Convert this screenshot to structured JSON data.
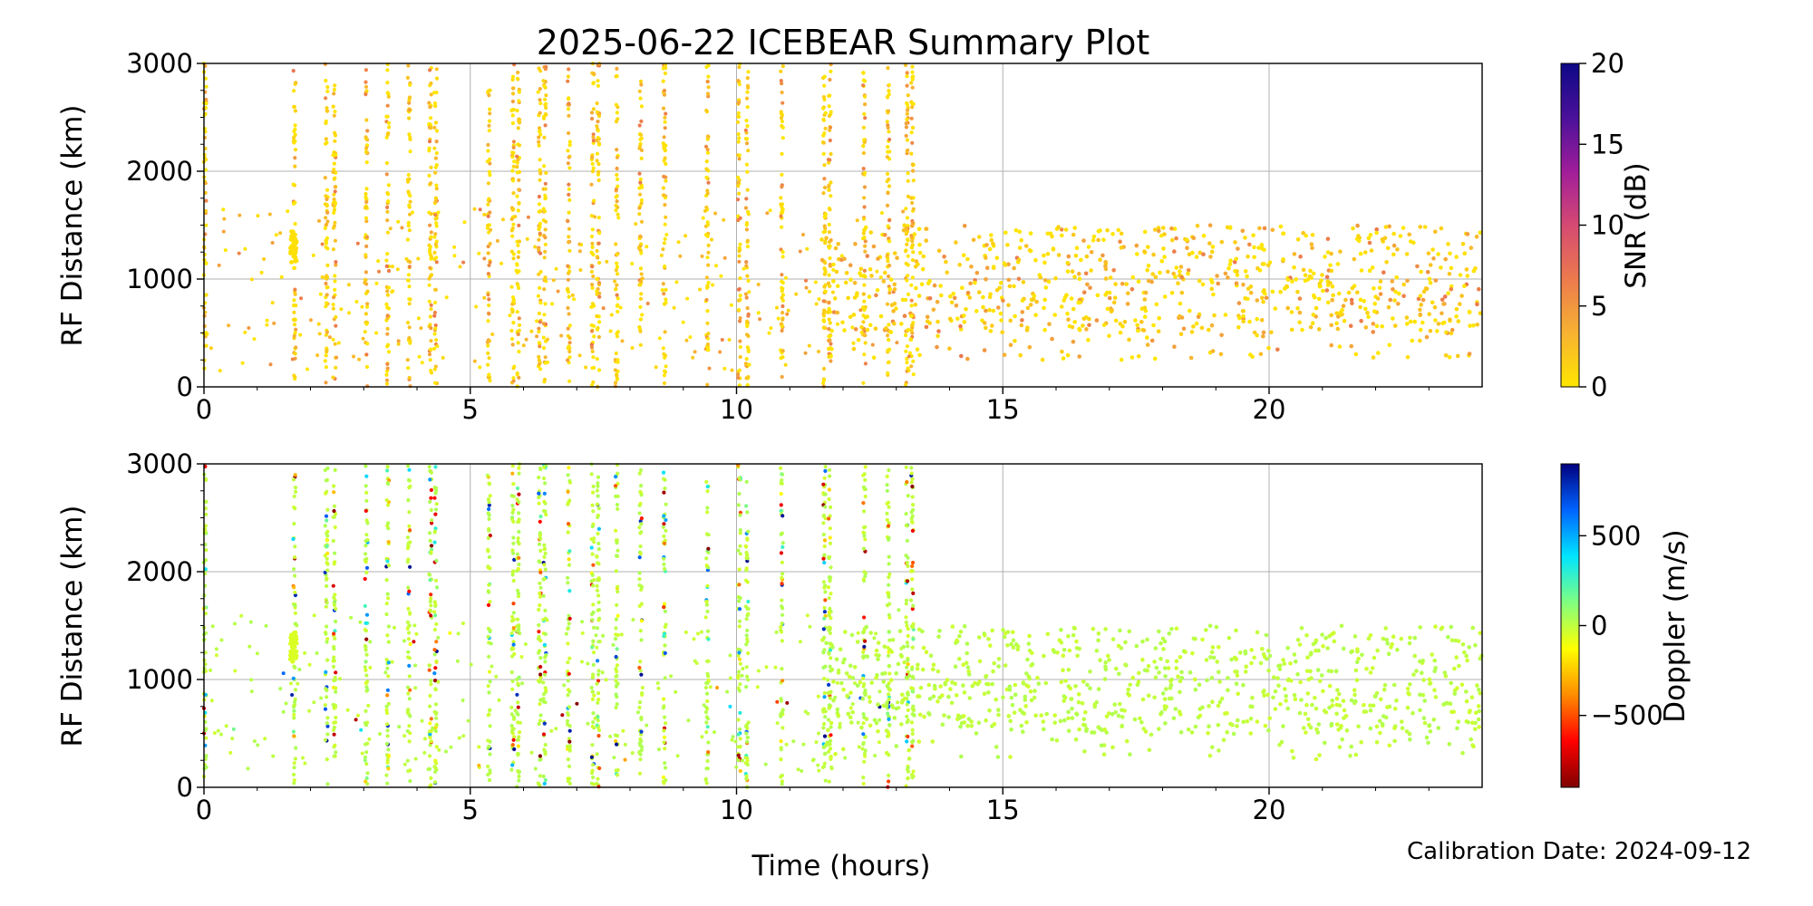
{
  "title": "2025-06-22 ICEBEAR Summary Plot",
  "xlabel": "Time (hours)",
  "calibration": "Calibration Date: 2024-09-12",
  "chart_data": [
    {
      "type": "scatter",
      "panel": "top",
      "ylabel": "RF Distance (km)",
      "xlim": [
        0,
        24
      ],
      "ylim": [
        0,
        3000
      ],
      "x_ticks": [
        0,
        5,
        10,
        15,
        20
      ],
      "y_ticks": [
        0,
        1000,
        2000,
        3000
      ],
      "grid": true,
      "colorbar": {
        "label": "SNR (dB)",
        "range": [
          0,
          20
        ],
        "ticks": [
          0,
          5,
          10,
          15,
          20
        ],
        "colors": [
          "#ffe600",
          "#f7b232",
          "#ec7a4d",
          "#d54a72",
          "#a01d9a",
          "#4a119a",
          "#0d0887"
        ]
      },
      "streak_hours": [
        0.02,
        1.7,
        2.3,
        2.45,
        3.05,
        3.45,
        3.85,
        4.25,
        4.35,
        5.35,
        5.8,
        5.9,
        6.3,
        6.4,
        6.85,
        7.3,
        7.4,
        7.75,
        8.2,
        8.65,
        9.45,
        10.05,
        10.2,
        10.85,
        11.65,
        11.75,
        12.4,
        12.85,
        13.2,
        13.3
      ],
      "streak_hours_note": "estimated"
    },
    {
      "type": "scatter",
      "panel": "bottom",
      "ylabel": "RF Distance (km)",
      "xlim": [
        0,
        24
      ],
      "ylim": [
        0,
        3000
      ],
      "x_ticks": [
        0,
        5,
        10,
        15,
        20
      ],
      "y_ticks": [
        0,
        1000,
        2000,
        3000
      ],
      "grid": true,
      "colorbar": {
        "label": "Doppler (m/s)",
        "range": [
          -900,
          900
        ],
        "ticks": [
          -500,
          0,
          500
        ],
        "tick_labels": [
          "−500",
          "0",
          "500"
        ],
        "colors": [
          "#800000",
          "#ff0000",
          "#ff8c00",
          "#ffff00",
          "#80ff80",
          "#00e5ff",
          "#0064ff",
          "#000080"
        ]
      },
      "streak_hours": [
        0.02,
        1.7,
        2.3,
        2.45,
        3.05,
        3.45,
        3.85,
        4.25,
        4.35,
        5.35,
        5.8,
        5.9,
        6.3,
        6.4,
        6.85,
        7.3,
        7.4,
        7.75,
        8.2,
        8.65,
        9.45,
        10.05,
        10.2,
        10.85,
        11.65,
        11.75,
        12.4,
        12.85,
        13.2,
        13.3
      ],
      "streak_hours_note": "estimated"
    }
  ],
  "colors": {
    "axis": "#000000",
    "grid": "#b0b0b0",
    "snr_low": "#f5d623",
    "doppler_zero": "#7dff7d"
  }
}
